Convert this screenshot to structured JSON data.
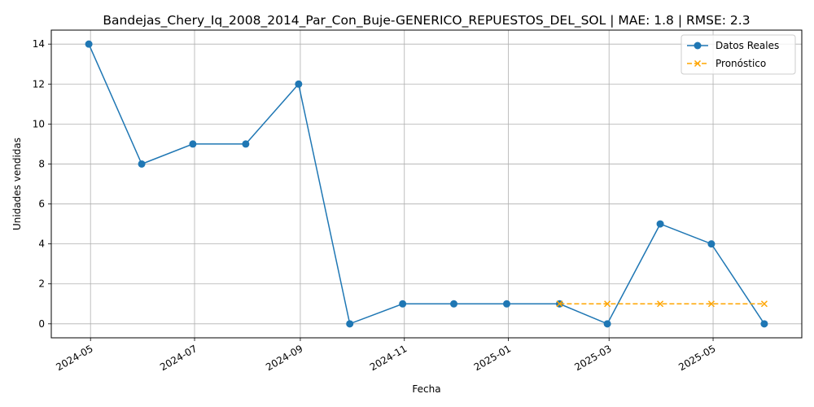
{
  "chart_data": {
    "type": "line",
    "title": "Bandejas_Chery_Iq_2008_2014_Par_Con_Buje-GENERICO_REPUESTOS_DEL_SOL | MAE: 1.8 | RMSE: 2.3",
    "xlabel": "Fecha",
    "ylabel": "Unidades vendidas",
    "ylim": [
      -0.7,
      14.7
    ],
    "xlim": [
      "2024-04-08",
      "2025-06-22"
    ],
    "x_ticks": [
      "2024-05",
      "2024-07",
      "2024-09",
      "2024-11",
      "2025-01",
      "2025-03",
      "2025-05"
    ],
    "y_ticks": [
      0,
      2,
      4,
      6,
      8,
      10,
      12,
      14
    ],
    "grid": true,
    "legend_position": "top-right",
    "series": [
      {
        "name": "Datos Reales",
        "color": "#1f77b4",
        "line_style": "solid",
        "marker": "circle",
        "x": [
          "2024-04-30",
          "2024-05-31",
          "2024-06-30",
          "2024-07-31",
          "2024-08-31",
          "2024-09-30",
          "2024-10-31",
          "2024-11-30",
          "2024-12-31",
          "2025-01-31",
          "2025-02-28",
          "2025-03-31",
          "2025-04-30",
          "2025-05-31"
        ],
        "values": [
          14,
          8,
          9,
          9,
          12,
          0,
          1,
          1,
          1,
          1,
          0,
          5,
          4,
          0
        ]
      },
      {
        "name": "Pronóstico",
        "color": "#ffa500",
        "line_style": "dashed",
        "marker": "x",
        "x": [
          "2025-01-31",
          "2025-02-28",
          "2025-03-31",
          "2025-04-30",
          "2025-05-31"
        ],
        "values": [
          1,
          1,
          1,
          1,
          1
        ]
      }
    ]
  }
}
